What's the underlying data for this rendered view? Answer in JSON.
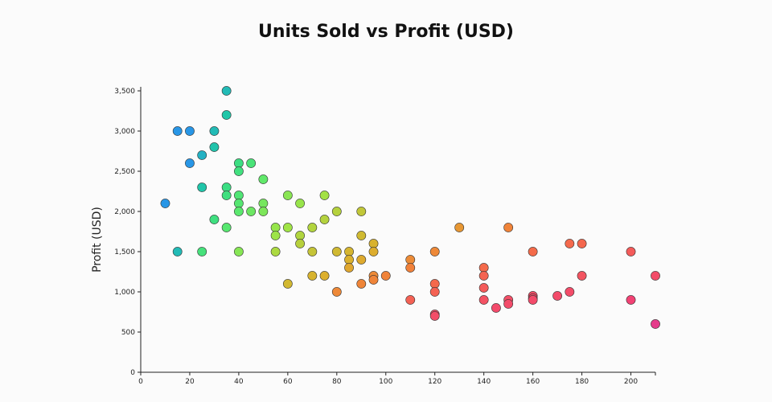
{
  "chart_data": {
    "type": "scatter",
    "title": "Units Sold vs Profit (USD)",
    "xlabel": "",
    "ylabel": "Profit (USD)",
    "xlim": [
      0,
      210
    ],
    "ylim": [
      0,
      3500
    ],
    "x_ticks": [
      0,
      20,
      40,
      60,
      80,
      100,
      120,
      140,
      160,
      180,
      200
    ],
    "y_ticks": [
      0,
      500,
      1000,
      1500,
      2000,
      2500,
      3000,
      3500
    ],
    "y_tick_labels": [
      "0",
      "500",
      "1,000",
      "1,500",
      "2,000",
      "2,500",
      "3,000",
      "3,500"
    ],
    "grid": false,
    "legend": "none",
    "points": [
      {
        "x": 10,
        "y": 2100
      },
      {
        "x": 15,
        "y": 3000
      },
      {
        "x": 15,
        "y": 1500
      },
      {
        "x": 20,
        "y": 3000
      },
      {
        "x": 20,
        "y": 2600
      },
      {
        "x": 25,
        "y": 2700
      },
      {
        "x": 25,
        "y": 2300
      },
      {
        "x": 25,
        "y": 1500
      },
      {
        "x": 30,
        "y": 3000
      },
      {
        "x": 30,
        "y": 2800
      },
      {
        "x": 30,
        "y": 1900
      },
      {
        "x": 35,
        "y": 3500
      },
      {
        "x": 35,
        "y": 3200
      },
      {
        "x": 35,
        "y": 2300
      },
      {
        "x": 35,
        "y": 2200
      },
      {
        "x": 35,
        "y": 1800
      },
      {
        "x": 40,
        "y": 2600
      },
      {
        "x": 40,
        "y": 2500
      },
      {
        "x": 40,
        "y": 2200
      },
      {
        "x": 40,
        "y": 2100
      },
      {
        "x": 40,
        "y": 2000
      },
      {
        "x": 40,
        "y": 1500
      },
      {
        "x": 45,
        "y": 2600
      },
      {
        "x": 45,
        "y": 2000
      },
      {
        "x": 50,
        "y": 2400
      },
      {
        "x": 50,
        "y": 2100
      },
      {
        "x": 50,
        "y": 2000
      },
      {
        "x": 55,
        "y": 1800
      },
      {
        "x": 55,
        "y": 1700
      },
      {
        "x": 55,
        "y": 1500
      },
      {
        "x": 60,
        "y": 2200
      },
      {
        "x": 60,
        "y": 1800
      },
      {
        "x": 60,
        "y": 1100
      },
      {
        "x": 65,
        "y": 2100
      },
      {
        "x": 65,
        "y": 1700
      },
      {
        "x": 65,
        "y": 1600
      },
      {
        "x": 70,
        "y": 1800
      },
      {
        "x": 70,
        "y": 1500
      },
      {
        "x": 70,
        "y": 1200
      },
      {
        "x": 75,
        "y": 2200
      },
      {
        "x": 75,
        "y": 1900
      },
      {
        "x": 75,
        "y": 1200
      },
      {
        "x": 80,
        "y": 2000
      },
      {
        "x": 80,
        "y": 1500
      },
      {
        "x": 80,
        "y": 1000
      },
      {
        "x": 85,
        "y": 1500
      },
      {
        "x": 85,
        "y": 1400
      },
      {
        "x": 85,
        "y": 1300
      },
      {
        "x": 90,
        "y": 2000
      },
      {
        "x": 90,
        "y": 1700
      },
      {
        "x": 90,
        "y": 1400
      },
      {
        "x": 90,
        "y": 1100
      },
      {
        "x": 95,
        "y": 1600
      },
      {
        "x": 95,
        "y": 1500
      },
      {
        "x": 95,
        "y": 1200
      },
      {
        "x": 95,
        "y": 1150
      },
      {
        "x": 100,
        "y": 1200
      },
      {
        "x": 110,
        "y": 1400
      },
      {
        "x": 110,
        "y": 1300
      },
      {
        "x": 110,
        "y": 900
      },
      {
        "x": 120,
        "y": 1500
      },
      {
        "x": 120,
        "y": 1100
      },
      {
        "x": 120,
        "y": 1000
      },
      {
        "x": 120,
        "y": 720
      },
      {
        "x": 120,
        "y": 700
      },
      {
        "x": 130,
        "y": 1800
      },
      {
        "x": 140,
        "y": 1300
      },
      {
        "x": 140,
        "y": 1200
      },
      {
        "x": 140,
        "y": 1050
      },
      {
        "x": 140,
        "y": 900
      },
      {
        "x": 145,
        "y": 800
      },
      {
        "x": 150,
        "y": 1800
      },
      {
        "x": 150,
        "y": 900
      },
      {
        "x": 150,
        "y": 850
      },
      {
        "x": 160,
        "y": 1500
      },
      {
        "x": 160,
        "y": 950
      },
      {
        "x": 160,
        "y": 920
      },
      {
        "x": 160,
        "y": 900
      },
      {
        "x": 170,
        "y": 950
      },
      {
        "x": 175,
        "y": 1600
      },
      {
        "x": 175,
        "y": 1000
      },
      {
        "x": 180,
        "y": 1600
      },
      {
        "x": 180,
        "y": 1200
      },
      {
        "x": 200,
        "y": 1500
      },
      {
        "x": 200,
        "y": 900
      },
      {
        "x": 210,
        "y": 1200
      },
      {
        "x": 210,
        "y": 600
      }
    ]
  }
}
